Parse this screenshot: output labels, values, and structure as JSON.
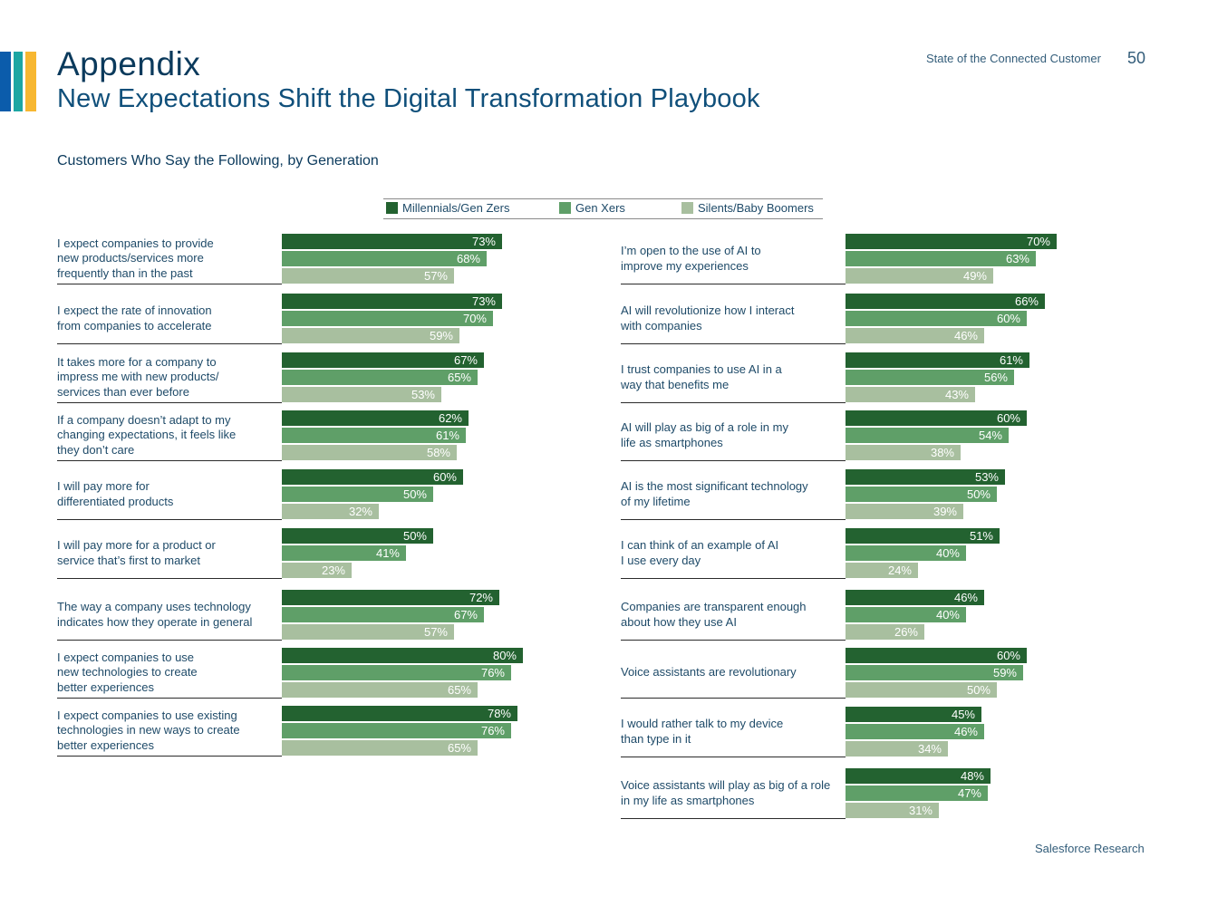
{
  "header": {
    "title": "Appendix",
    "subtitle": "New Expectations Shift the Digital Transformation Playbook",
    "report_name": "State of the Connected Customer",
    "page_number": "50"
  },
  "footer": {
    "text": "Salesforce Research"
  },
  "colors": {
    "series_0": "#236230",
    "series_1": "#5f9f68",
    "series_2": "#a8bf9f",
    "text": "#1e4a68",
    "title": "#0b3a5c"
  },
  "chart_data": {
    "type": "bar",
    "orientation": "horizontal",
    "title": "Customers Who Say the Following, by Generation",
    "legend": [
      "Millennials/Gen Zers",
      "Gen Xers",
      "Silents/Baby Boomers"
    ],
    "unit": "%",
    "xlim": [
      0,
      100
    ],
    "left_panel": [
      {
        "label": "I expect companies to provide\nnew products/services more\nfrequently than in the past",
        "values": [
          73,
          68,
          57
        ]
      },
      {
        "label": "I expect the rate of innovation\nfrom companies to accelerate",
        "values": [
          73,
          70,
          59
        ]
      },
      {
        "label": "It takes more for a company to\nimpress me with new products/\nservices than ever before",
        "values": [
          67,
          65,
          53
        ]
      },
      {
        "label": "If a company doesn’t adapt to my\nchanging expectations, it feels like\nthey don’t care",
        "values": [
          62,
          61,
          58
        ]
      },
      {
        "label": "I will pay more for\ndifferentiated products",
        "values": [
          60,
          50,
          32
        ]
      },
      {
        "label": "I will pay more for a product or\nservice that’s first to market",
        "values": [
          50,
          41,
          23
        ]
      },
      {
        "label": "The way a company uses technology\nindicates how they operate in general",
        "values": [
          72,
          67,
          57
        ]
      },
      {
        "label": "I expect companies to use\nnew technologies to create\nbetter experiences",
        "values": [
          80,
          76,
          65
        ]
      },
      {
        "label": "I expect companies to use existing\ntechnologies in new ways to create\nbetter experiences",
        "values": [
          78,
          76,
          65
        ]
      }
    ],
    "right_panel": [
      {
        "label": "I’m open to the use of AI to\nimprove my experiences",
        "values": [
          70,
          63,
          49
        ]
      },
      {
        "label": "AI will revolutionize how I interact\nwith companies",
        "values": [
          66,
          60,
          46
        ]
      },
      {
        "label": "I trust companies to use AI in a\nway that benefits me",
        "values": [
          61,
          56,
          43
        ]
      },
      {
        "label": "AI will play as big of a role in my\nlife as smartphones",
        "values": [
          60,
          54,
          38
        ]
      },
      {
        "label": "AI is the most significant technology\nof my lifetime",
        "values": [
          53,
          50,
          39
        ]
      },
      {
        "label": "I can think of an example of AI\nI use every day",
        "values": [
          51,
          40,
          24
        ]
      },
      {
        "label": "Companies are transparent enough\nabout how they use AI",
        "values": [
          46,
          40,
          26
        ]
      },
      {
        "label": "Voice assistants are revolutionary",
        "values": [
          60,
          59,
          50
        ]
      },
      {
        "label": "I would rather talk to my device\nthan type in it",
        "values": [
          45,
          46,
          34
        ]
      },
      {
        "label": "Voice assistants will play as big of a role\nin my life as smartphones",
        "values": [
          48,
          47,
          31
        ]
      }
    ]
  }
}
